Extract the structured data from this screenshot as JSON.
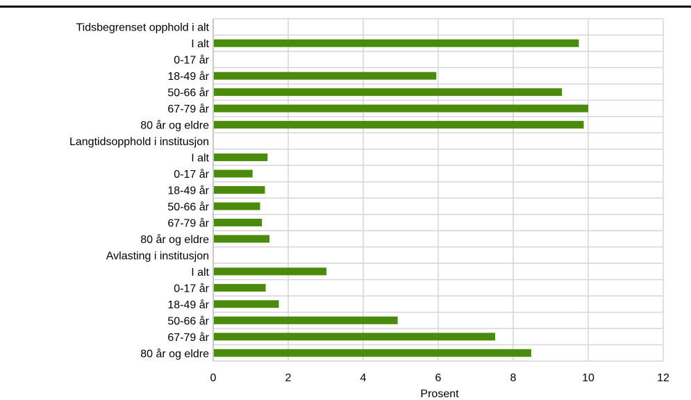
{
  "chart_data": {
    "type": "bar",
    "orientation": "horizontal",
    "categories": [
      "Tidsbegrenset opphold i alt",
      "I alt",
      "0-17 år",
      "18-49 år",
      "50-66 år",
      "67-79 år",
      "80 år og eldre",
      "Langtidsopphold i institusjon",
      "I alt",
      "0-17 år",
      "18-49 år",
      "50-66 år",
      "67-79 år",
      "80 år og eldre",
      "Avlasting i institusjon",
      "I alt",
      "0-17 år",
      "18-49 år",
      "50-66 år",
      "67-79 år",
      "80 år og eldre"
    ],
    "values": [
      null,
      9.75,
      null,
      5.95,
      9.3,
      10.0,
      9.88,
      null,
      1.45,
      1.05,
      1.38,
      1.25,
      1.3,
      1.5,
      null,
      3.02,
      1.4,
      1.75,
      4.92,
      7.52,
      8.48
    ],
    "xlabel": "Prosent",
    "ylabel": "",
    "xlim": [
      0,
      12
    ],
    "xticks": [
      0,
      2,
      4,
      6,
      8,
      10,
      12
    ],
    "bar_color": "#4a8a0d",
    "grid": true
  }
}
